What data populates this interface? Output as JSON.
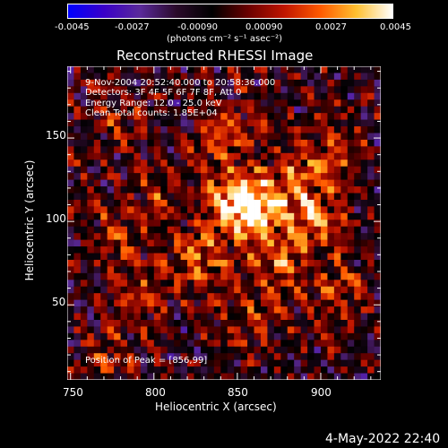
{
  "colorbar": {
    "colors": [
      "#0000ff",
      "#3a00c8",
      "#5a2a9a",
      "#2a0a2a",
      "#000000",
      "#6a0000",
      "#c01500",
      "#ff5a00",
      "#ffc030",
      "#ffffff"
    ],
    "tick_labels": [
      "-0.0045",
      "-0.0027",
      "-0.00090",
      "0.00090",
      "0.0027",
      "0.0045"
    ],
    "unit_label": "(photons cm⁻² s⁻¹ asec⁻²)"
  },
  "title": "Reconstructed RHESSI Image",
  "annotations": {
    "time_range": "9-Nov-2004 20:52:40.000 to 20:58:36.000",
    "detectors": "Detectors: 3F 4F 5F 6F 7F 8F, Att 0",
    "energy": "Energy Range: 12.0 - 25.0 keV",
    "clean": "Clean    Total counts: 1.85E+04",
    "peak": "Position of Peak = [856,99]"
  },
  "footer_date": "4-May-2022 22:40",
  "chart_data": {
    "type": "heatmap",
    "title": "Reconstructed RHESSI Image",
    "xlabel": "Heliocentric X (arcsec)",
    "ylabel": "Heliocentric Y (arcsec)",
    "xlim": [
      748,
      936
    ],
    "ylim": [
      5,
      193
    ],
    "x_ticks": [
      750,
      800,
      850,
      900
    ],
    "y_ticks": [
      50,
      100,
      150
    ],
    "color_range": [
      -0.0045,
      0.0045
    ],
    "peak": [
      856,
      99
    ],
    "sources": [
      {
        "x": 862,
        "y": 107,
        "intensity": 0.0045
      },
      {
        "x": 848,
        "y": 112,
        "intensity": 0.004
      },
      {
        "x": 828,
        "y": 78,
        "intensity": 0.0035
      },
      {
        "x": 883,
        "y": 122,
        "intensity": 0.003
      },
      {
        "x": 872,
        "y": 75,
        "intensity": 0.003
      },
      {
        "x": 897,
        "y": 100,
        "intensity": 0.0032
      },
      {
        "x": 905,
        "y": 140,
        "intensity": 0.0025
      },
      {
        "x": 843,
        "y": 152,
        "intensity": 0.0027
      },
      {
        "x": 808,
        "y": 120,
        "intensity": 0.0022
      },
      {
        "x": 780,
        "y": 95,
        "intensity": 0.002
      },
      {
        "x": 790,
        "y": 60,
        "intensity": 0.0022
      },
      {
        "x": 775,
        "y": 20,
        "intensity": 0.0018
      },
      {
        "x": 855,
        "y": 40,
        "intensity": 0.002
      },
      {
        "x": 910,
        "y": 60,
        "intensity": 0.002
      },
      {
        "x": 778,
        "y": 160,
        "intensity": 0.0015
      }
    ]
  }
}
